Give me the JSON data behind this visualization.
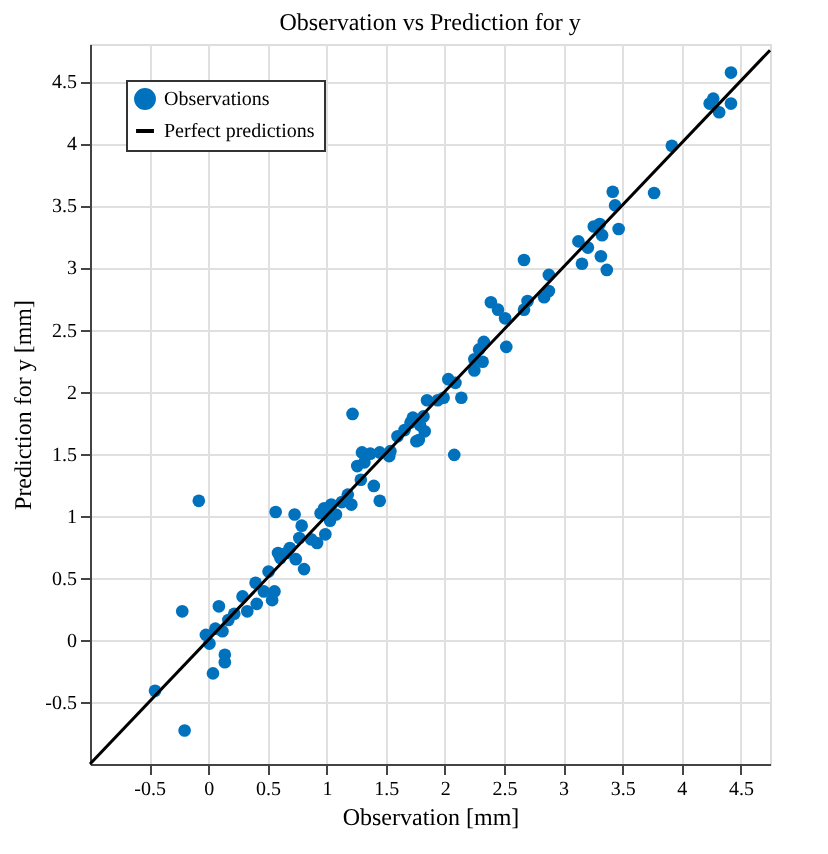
{
  "chart_data": {
    "type": "scatter",
    "title": "Observation vs Prediction for y",
    "xlabel": "Observation [mm]",
    "ylabel": "Prediction for y [mm]",
    "xlim": [
      -1,
      4.75
    ],
    "ylim": [
      -1,
      4.8
    ],
    "xticks": [
      -0.5,
      0,
      0.5,
      1,
      1.5,
      2,
      2.5,
      3,
      3.5,
      4,
      4.5
    ],
    "yticks": [
      -0.5,
      0,
      0.5,
      1,
      1.5,
      2,
      2.5,
      3,
      3.5,
      4,
      4.5
    ],
    "grid": true,
    "legend": "top left",
    "series": [
      {
        "name": "Observations",
        "color": "#0072bd",
        "type": "scatter",
        "marker": "circle",
        "x": [
          4.42,
          4.27,
          4.24,
          4.32,
          4.42,
          3.92,
          3.77,
          3.42,
          3.44,
          3.47,
          3.26,
          3.31,
          3.33,
          3.21,
          3.13,
          3.16,
          3.32,
          3.37,
          2.67,
          2.88,
          2.88,
          2.84,
          2.7,
          2.67,
          2.39,
          2.45,
          2.51,
          2.52,
          2.33,
          2.29,
          2.25,
          2.32,
          2.25,
          2.03,
          2.09,
          2.14,
          2.08,
          1.94,
          1.99,
          1.73,
          1.82,
          1.76,
          1.22,
          1.85,
          -0.08,
          0.57,
          0.73,
          -0.22,
          -0.45,
          -0.2,
          -0.02,
          0.01,
          0.06,
          0.12,
          0.09,
          0.04,
          0.14,
          0.14,
          0.17,
          0.22,
          0.29,
          0.33,
          0.4,
          0.41,
          0.47,
          0.51,
          0.54,
          0.56,
          0.59,
          0.66,
          0.74,
          0.81,
          0.79,
          0.77,
          0.92,
          0.99,
          0.95,
          1.03,
          1.04,
          1.13,
          1.21,
          1.29,
          1.3,
          1.37,
          1.4,
          1.45,
          1.26,
          1.32,
          1.45,
          1.53,
          1.54,
          1.6,
          1.66,
          1.71,
          1.78,
          1.83,
          1.79,
          0.98,
          0.61,
          0.69,
          0.87,
          1.08,
          1.18
        ],
        "values": [
          4.57,
          4.36,
          4.32,
          4.25,
          4.32,
          3.98,
          3.6,
          3.61,
          3.5,
          3.31,
          3.33,
          3.35,
          3.26,
          3.16,
          3.21,
          3.03,
          3.09,
          2.98,
          3.06,
          2.94,
          2.81,
          2.76,
          2.73,
          2.66,
          2.72,
          2.66,
          2.59,
          2.36,
          2.4,
          2.34,
          2.26,
          2.24,
          2.17,
          2.1,
          2.07,
          1.95,
          1.49,
          1.93,
          1.95,
          1.79,
          1.8,
          1.6,
          1.82,
          1.93,
          1.12,
          1.03,
          1.01,
          0.23,
          -0.41,
          -0.73,
          0.04,
          -0.03,
          0.09,
          0.07,
          0.27,
          -0.27,
          -0.12,
          -0.18,
          0.16,
          0.21,
          0.35,
          0.23,
          0.46,
          0.29,
          0.39,
          0.55,
          0.32,
          0.39,
          0.7,
          0.7,
          0.65,
          0.57,
          0.92,
          0.82,
          0.78,
          0.85,
          1.02,
          0.96,
          1.09,
          1.11,
          1.09,
          1.29,
          1.51,
          1.5,
          1.24,
          1.12,
          1.4,
          1.43,
          1.51,
          1.48,
          1.52,
          1.64,
          1.69,
          1.75,
          1.61,
          1.68,
          1.73,
          1.06,
          0.66,
          0.74,
          0.81,
          1.01,
          1.17
        ]
      },
      {
        "name": "Perfect predictions",
        "color": "#000000",
        "type": "line",
        "line_style": "solid",
        "x": [
          -1,
          4.75
        ],
        "values": [
          -1,
          4.75
        ]
      }
    ]
  }
}
